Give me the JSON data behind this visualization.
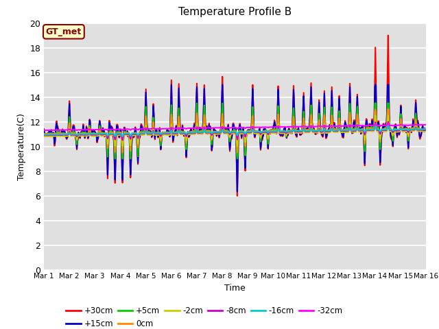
{
  "title": "Temperature Profile B",
  "xlabel": "Time",
  "ylabel": "Temperature(C)",
  "ylim": [
    0,
    20
  ],
  "xlim": [
    0,
    15
  ],
  "xtick_labels": [
    "Mar 1",
    "Mar 2",
    "Mar 3",
    "Mar 4",
    "Mar 5",
    "Mar 6",
    "Mar 7",
    "Mar 8",
    "Mar 9",
    "Mar 10",
    "Mar 11",
    "Mar 12",
    "Mar 13",
    "Mar 14",
    "Mar 15",
    "Mar 16"
  ],
  "ytick_vals": [
    0,
    2,
    4,
    6,
    8,
    10,
    12,
    14,
    16,
    18,
    20
  ],
  "background_color": "#e0e0e0",
  "grid_color": "#ffffff",
  "annotation_text": "GT_met",
  "annotation_color": "#8b0000",
  "annotation_bg": "#ffffcc",
  "series": [
    {
      "label": "+30cm",
      "color": "#ff0000",
      "lw": 1.5
    },
    {
      "label": "+15cm",
      "color": "#0000cc",
      "lw": 1.5
    },
    {
      "label": "+5cm",
      "color": "#00cc00",
      "lw": 1.5
    },
    {
      "label": "0cm",
      "color": "#ff8800",
      "lw": 1.5
    },
    {
      "label": "-2cm",
      "color": "#cccc00",
      "lw": 1.5
    },
    {
      "label": "-8cm",
      "color": "#cc00cc",
      "lw": 1.5
    },
    {
      "label": "-16cm",
      "color": "#00cccc",
      "lw": 1.5
    },
    {
      "label": "-32cm",
      "color": "#ff00ff",
      "lw": 1.5
    }
  ],
  "figsize": [
    6.4,
    4.8
  ],
  "dpi": 100
}
